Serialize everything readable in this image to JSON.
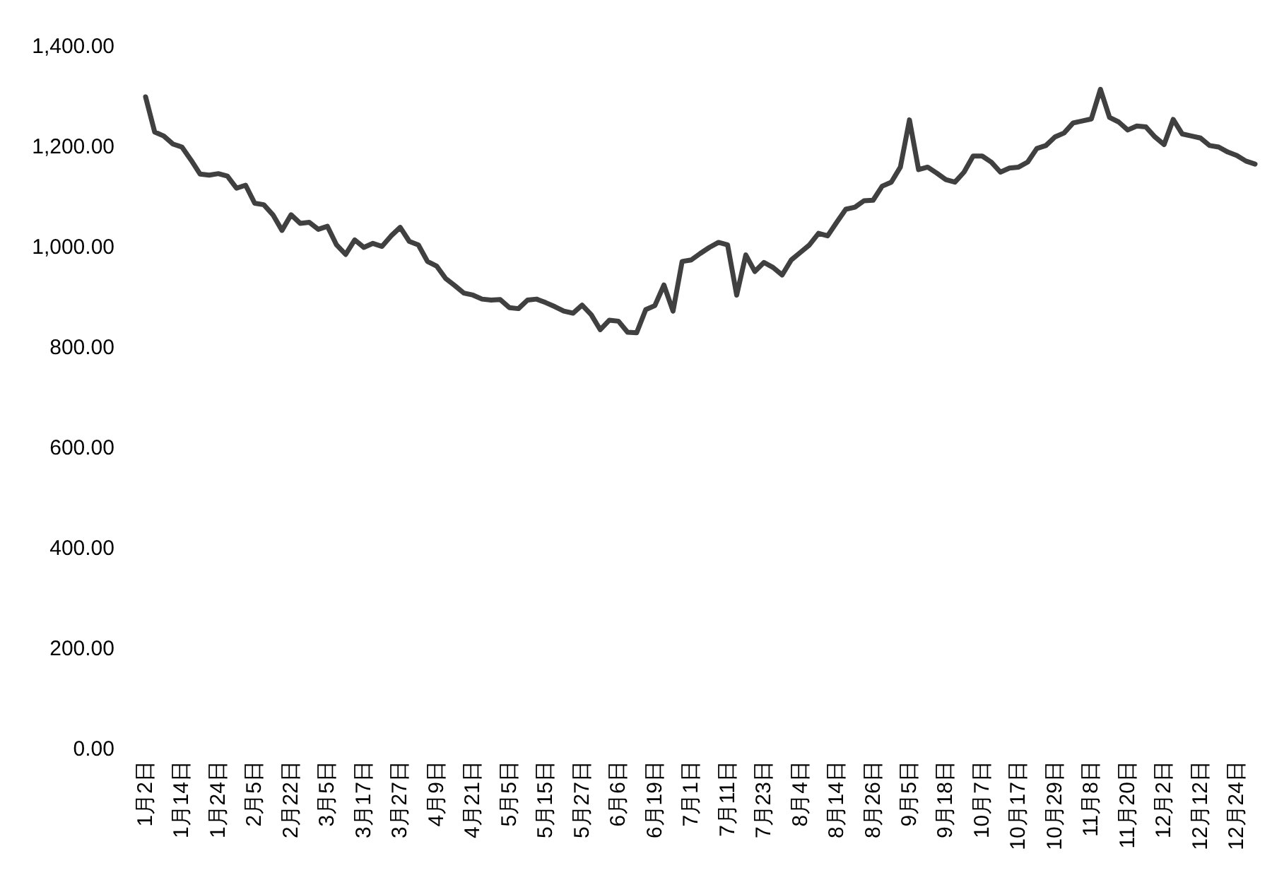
{
  "chart_data": {
    "type": "line",
    "color": "#404040",
    "marker": "none",
    "line_style": "solid",
    "categories": [
      "1月2日",
      null,
      null,
      null,
      "1月14日",
      null,
      null,
      null,
      "1月24日",
      null,
      null,
      null,
      "2月5日",
      null,
      null,
      null,
      "2月22日",
      null,
      null,
      null,
      "3月5日",
      null,
      null,
      null,
      "3月17日",
      null,
      null,
      null,
      "3月27日",
      null,
      null,
      null,
      "4月9日",
      null,
      null,
      null,
      "4月21日",
      null,
      null,
      null,
      "5月5日",
      null,
      null,
      null,
      "5月15日",
      null,
      null,
      null,
      "5月27日",
      null,
      null,
      null,
      "6月6日",
      null,
      null,
      null,
      "6月19日",
      null,
      null,
      null,
      "7月1日",
      null,
      null,
      null,
      "7月11日",
      null,
      null,
      null,
      "7月23日",
      null,
      null,
      null,
      "8月4日",
      null,
      null,
      null,
      "8月14日",
      null,
      null,
      null,
      "8月26日",
      null,
      null,
      null,
      "9月5日",
      null,
      null,
      null,
      "9月18日",
      null,
      null,
      null,
      "10月7日",
      null,
      null,
      null,
      "10月17日",
      null,
      null,
      null,
      "10月29日",
      null,
      null,
      null,
      "11月8日",
      null,
      null,
      null,
      "11月20日",
      null,
      null,
      null,
      "12月2日",
      null,
      null,
      null,
      "12月12日",
      null,
      null,
      null,
      "12月24日",
      null,
      null
    ],
    "values": [
      1300,
      1230,
      1222,
      1206,
      1200,
      1174,
      1146,
      1144,
      1147,
      1142,
      1118,
      1124,
      1088,
      1085,
      1065,
      1034,
      1065,
      1048,
      1050,
      1036,
      1042,
      1005,
      986,
      1015,
      1000,
      1008,
      1002,
      1023,
      1040,
      1012,
      1005,
      972,
      963,
      938,
      924,
      909,
      905,
      897,
      895,
      896,
      880,
      878,
      895,
      897,
      890,
      882,
      873,
      869,
      885,
      866,
      836,
      855,
      853,
      831,
      830,
      876,
      884,
      925,
      873,
      972,
      975,
      988,
      1000,
      1010,
      1005,
      905,
      985,
      952,
      970,
      960,
      945,
      975,
      990,
      1005,
      1028,
      1023,
      1050,
      1076,
      1080,
      1093,
      1094,
      1122,
      1130,
      1160,
      1254,
      1155,
      1160,
      1148,
      1135,
      1130,
      1150,
      1182,
      1182,
      1170,
      1150,
      1158,
      1160,
      1170,
      1197,
      1203,
      1220,
      1228,
      1248,
      1252,
      1256,
      1315,
      1259,
      1250,
      1234,
      1242,
      1240,
      1220,
      1205,
      1255,
      1226,
      1222,
      1218,
      1203,
      1200,
      1190,
      1183,
      1172,
      1166
    ],
    "ylim": [
      0,
      1400
    ],
    "yticks": [
      {
        "value": 0,
        "label": "0.00"
      },
      {
        "value": 200,
        "label": "200.00"
      },
      {
        "value": 400,
        "label": "400.00"
      },
      {
        "value": 600,
        "label": "600.00"
      },
      {
        "value": 800,
        "label": "800.00"
      },
      {
        "value": 1000,
        "label": "1,000.00"
      },
      {
        "value": 1200,
        "label": "1,200.00"
      },
      {
        "value": 1400,
        "label": "1,400.00"
      }
    ]
  }
}
